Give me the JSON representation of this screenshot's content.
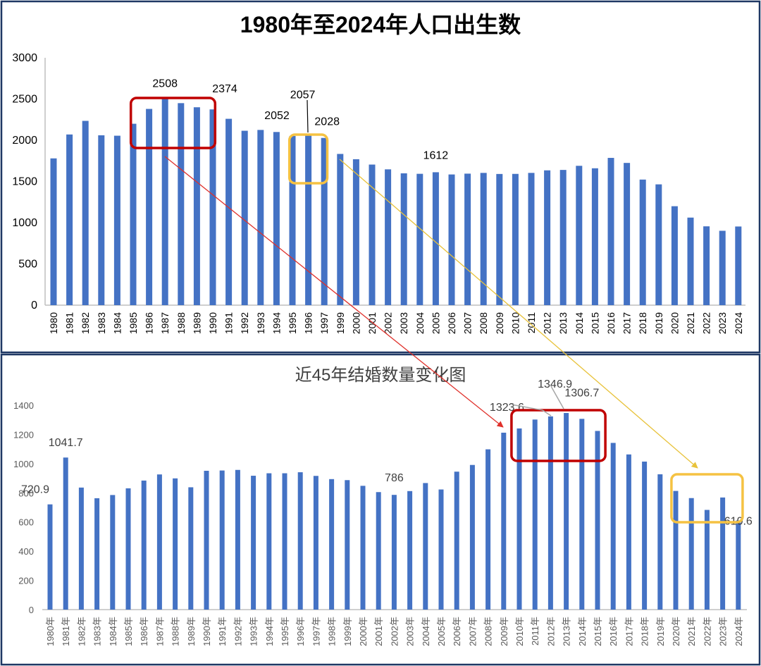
{
  "chart_data": [
    {
      "type": "bar",
      "title": "1980年至2024年人口出生数",
      "categories": [
        "1980",
        "1981",
        "1982",
        "1983",
        "1984",
        "1985",
        "1986",
        "1987",
        "1988",
        "1989",
        "1990",
        "1991",
        "1992",
        "1993",
        "1994",
        "1995",
        "1996",
        "1997",
        "1999",
        "2000",
        "2001",
        "2002",
        "2003",
        "2004",
        "2005",
        "2006",
        "2007",
        "2008",
        "2009",
        "2010",
        "2011",
        "2012",
        "2013",
        "2014",
        "2015",
        "2016",
        "2017",
        "2018",
        "2019",
        "2020",
        "2021",
        "2022",
        "2023",
        "2024"
      ],
      "values": [
        1780,
        2070,
        2235,
        2060,
        2055,
        2200,
        2380,
        2508,
        2450,
        2400,
        2374,
        2260,
        2115,
        2125,
        2100,
        2052,
        2057,
        2028,
        1834,
        1770,
        1705,
        1647,
        1599,
        1593,
        1612,
        1585,
        1595,
        1604,
        1591,
        1592,
        1604,
        1635,
        1640,
        1690,
        1660,
        1786,
        1725,
        1523,
        1465,
        1200,
        1062,
        956,
        902,
        954
      ],
      "ylim": [
        0,
        3000
      ],
      "yticks": [
        0,
        500,
        1000,
        1500,
        2000,
        2500,
        3000
      ],
      "grid": false,
      "data_labels": [
        {
          "index": 7,
          "text": "2508"
        },
        {
          "index": 10,
          "text": "2374"
        },
        {
          "index": 15,
          "text": "2052"
        },
        {
          "index": 16,
          "text": "2057"
        },
        {
          "index": 17,
          "text": "2028"
        },
        {
          "index": 24,
          "text": "1612"
        }
      ],
      "highlights": [
        {
          "color": "#c00000",
          "from_index": 5,
          "to_index": 10
        },
        {
          "color": "#f5c242",
          "from_index": 15,
          "to_index": 17
        }
      ]
    },
    {
      "type": "bar",
      "title": "近45年结婚数量变化图",
      "categories": [
        "1980年",
        "1981年",
        "1982年",
        "1983年",
        "1984年",
        "1985年",
        "1986年",
        "1987年",
        "1988年",
        "1989年",
        "1990年",
        "1991年",
        "1992年",
        "1993年",
        "1994年",
        "1995年",
        "1996年",
        "1997年",
        "1998年",
        "1999年",
        "2000年",
        "2001年",
        "2002年",
        "2003年",
        "2004年",
        "2005年",
        "2006年",
        "2007年",
        "2008年",
        "2009年",
        "2010年",
        "2011年",
        "2012年",
        "2013年",
        "2014年",
        "2015年",
        "2016年",
        "2017年",
        "2018年",
        "2019年",
        "2020年",
        "2021年",
        "2022年",
        "2023年",
        "2024年"
      ],
      "values": [
        720.9,
        1041.7,
        836,
        763,
        785,
        831,
        884,
        926,
        899,
        838,
        951,
        953,
        957,
        917,
        934,
        934,
        941,
        916,
        894,
        887,
        848,
        805,
        786,
        812,
        867,
        823,
        945,
        991,
        1098,
        1212,
        1241,
        1302,
        1323.6,
        1346.9,
        1306.7,
        1224,
        1142,
        1063,
        1014,
        927,
        813,
        764,
        683,
        768,
        610.6
      ],
      "ylim": [
        0,
        1400
      ],
      "yticks": [
        0,
        200,
        400,
        600,
        800,
        1000,
        1200,
        1400
      ],
      "grid": false,
      "data_labels": [
        {
          "index": 0,
          "text": "720.9"
        },
        {
          "index": 1,
          "text": "1041.7"
        },
        {
          "index": 22,
          "text": "786"
        },
        {
          "index": 32,
          "text": "1323.6"
        },
        {
          "index": 33,
          "text": "1346.9"
        },
        {
          "index": 34,
          "text": "1306.7"
        },
        {
          "index": 44,
          "text": "610.6"
        }
      ],
      "highlights": [
        {
          "color": "#c00000",
          "from_index": 30,
          "to_index": 35
        },
        {
          "color": "#f5c242",
          "from_index": 40,
          "to_index": 44
        }
      ]
    }
  ],
  "colors": {
    "bar": "#4472c4",
    "red_highlight": "#c00000",
    "yellow_highlight": "#f5c242",
    "frame": "#1f3864"
  }
}
